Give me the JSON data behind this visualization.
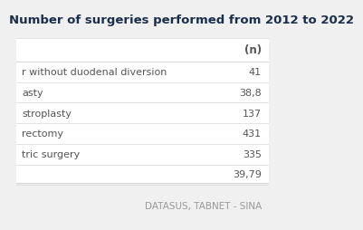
{
  "title": "Number of surgeries performed from 2012 to 2022",
  "col_header": "(n)",
  "row_labels": [
    "r without duodenal diversion",
    "asty",
    "stroplasty",
    "rectomy",
    "tric surgery"
  ],
  "row_values": [
    "41",
    "38,8",
    "137",
    "431",
    "335"
  ],
  "total_value": "39,79",
  "footer": "DATASUS, TABNET - SINA",
  "bg_color": "#f0f0f0",
  "table_bg": "#ffffff",
  "text_color_dark": "#1a2e4a",
  "text_color_body": "#555555",
  "text_color_footer": "#999999",
  "line_color": "#d8d8d8",
  "title_fontsize": 9.5,
  "header_fontsize": 8.5,
  "row_fontsize": 8.0,
  "footer_fontsize": 7.5,
  "total_row_indent": 0.55
}
